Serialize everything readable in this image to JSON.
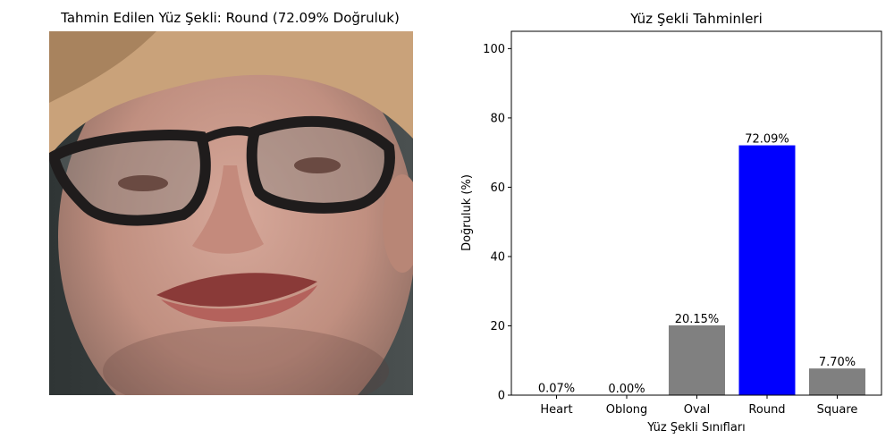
{
  "photo_panel": {
    "title": "Tahmin Edilen Yüz Şekli: Round (72.09% Doğruluk)"
  },
  "chart_data": {
    "type": "bar",
    "title": "Yüz Şekli Tahminleri",
    "xlabel": "Yüz Şekli Sınıfları",
    "ylabel": "Doğruluk (%)",
    "categories": [
      "Heart",
      "Oblong",
      "Oval",
      "Round",
      "Square"
    ],
    "values": [
      0.07,
      0.0,
      20.15,
      72.09,
      7.7
    ],
    "data_labels": [
      "0.07%",
      "0.00%",
      "20.15%",
      "72.09%",
      "7.70%"
    ],
    "colors": [
      "#808080",
      "#808080",
      "#808080",
      "#0000ff",
      "#808080"
    ],
    "ylim": [
      0,
      105
    ],
    "yticks": [
      0,
      20,
      40,
      60,
      80,
      100
    ],
    "grid": false
  }
}
